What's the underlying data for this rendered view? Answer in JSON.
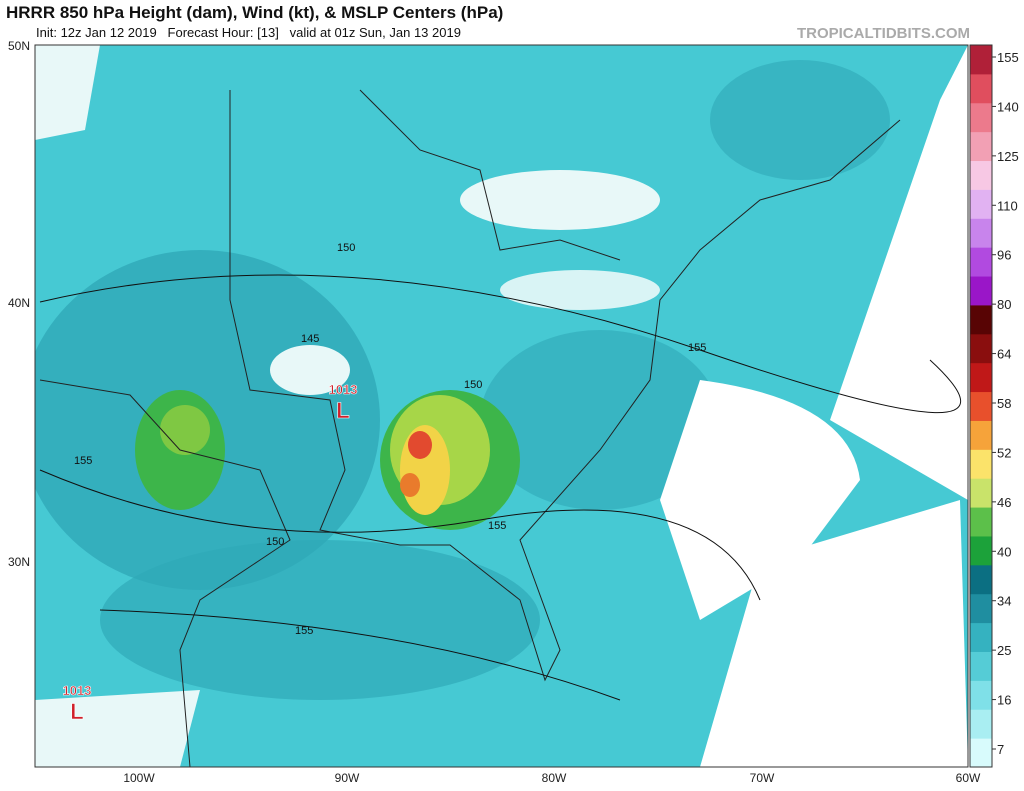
{
  "header": {
    "title": "HRRR 850 hPa Height (dam), Wind (kt), & MSLP Centers (hPa)",
    "subtitle": "Init: 12z Jan 12 2019   Forecast Hour: [13]   valid at 01z Sun, Jan 13 2019",
    "source": "TROPICALTIDBITS.COM"
  },
  "map": {
    "lat_labels": [
      "50N",
      "40N",
      "30N"
    ],
    "lon_labels": [
      "100W",
      "90W",
      "80W",
      "70W",
      "60W"
    ],
    "contour_labels": [
      "150",
      "145",
      "150",
      "155",
      "150",
      "155",
      "155",
      "155"
    ],
    "pressure_centers": [
      {
        "value": "1013",
        "symbol": "L"
      },
      {
        "value": "1013",
        "symbol": "L"
      }
    ]
  },
  "colorbar": {
    "labels": [
      7,
      16,
      25,
      34,
      40,
      46,
      52,
      58,
      64,
      80,
      96,
      110,
      125,
      140,
      155
    ]
  }
}
